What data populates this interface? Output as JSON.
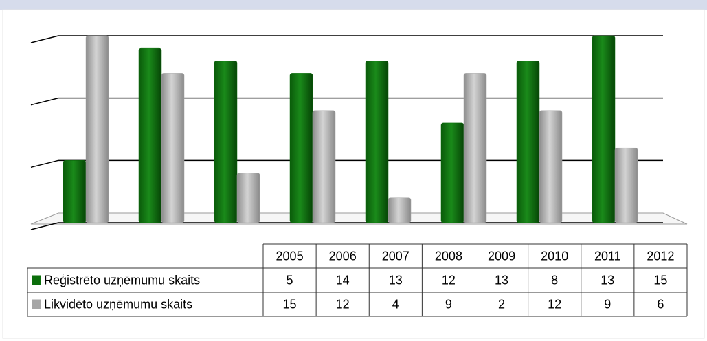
{
  "chart_data": {
    "type": "bar",
    "categories": [
      "2005",
      "2006",
      "2007",
      "2008",
      "2009",
      "2010",
      "2011",
      "2012"
    ],
    "series": [
      {
        "name": "Reģistrēto uzņēmumu skaits",
        "color": "#0b6e0b",
        "values": [
          5,
          14,
          13,
          12,
          13,
          8,
          13,
          15
        ]
      },
      {
        "name": "Likvidēto uzņēmumu skaits",
        "color": "#a6a6a6",
        "values": [
          15,
          12,
          4,
          9,
          2,
          12,
          9,
          6
        ]
      }
    ],
    "ylim": [
      0,
      15
    ],
    "yticks": [
      0,
      5,
      10,
      15
    ],
    "grid": true
  }
}
